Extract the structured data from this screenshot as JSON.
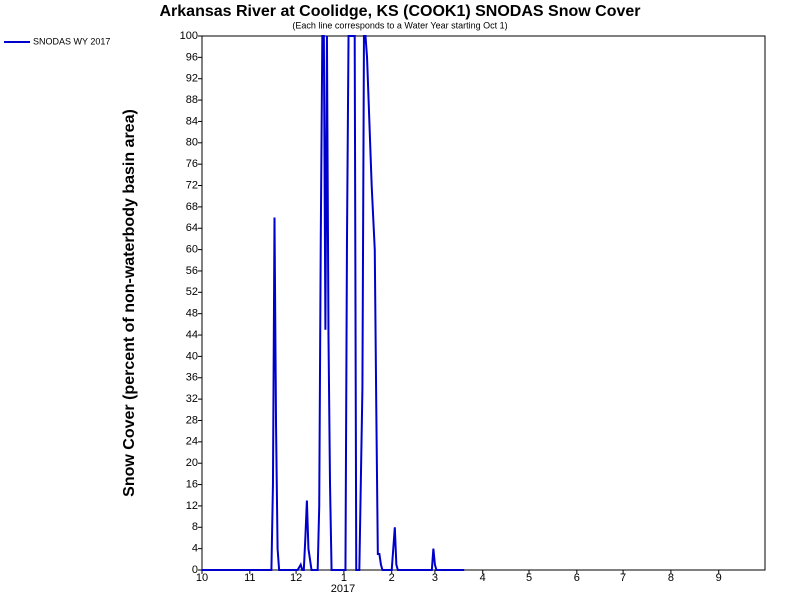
{
  "chart_data": {
    "type": "line",
    "title": "Arkansas River at Coolidge, KS (COOK1) SNODAS Snow Cover",
    "subtitle": "(Each line corresponds to a Water Year starting Oct 1)",
    "y_label": "Snow Cover (percent of non-waterbody basin area)",
    "x_year_label": "2017",
    "legend": "top-left",
    "xlim": [
      0,
      365
    ],
    "xticks": [
      {
        "value": 0,
        "label": "10"
      },
      {
        "value": 31,
        "label": "11"
      },
      {
        "value": 61,
        "label": "12"
      },
      {
        "value": 92,
        "label": "1"
      },
      {
        "value": 123,
        "label": "2"
      },
      {
        "value": 151,
        "label": "3"
      },
      {
        "value": 182,
        "label": "4"
      },
      {
        "value": 212,
        "label": "5"
      },
      {
        "value": 243,
        "label": "6"
      },
      {
        "value": 273,
        "label": "7"
      },
      {
        "value": 304,
        "label": "8"
      },
      {
        "value": 335,
        "label": "9"
      }
    ],
    "ylim": [
      0,
      100
    ],
    "yticks": [
      0,
      4,
      8,
      12,
      16,
      20,
      24,
      28,
      32,
      36,
      40,
      44,
      48,
      52,
      56,
      60,
      64,
      68,
      72,
      76,
      80,
      84,
      88,
      92,
      96,
      100
    ],
    "x": [
      0,
      45,
      46,
      47,
      48,
      49,
      50,
      62,
      64,
      65,
      66,
      67,
      68,
      69,
      70,
      71,
      75,
      76,
      77,
      78,
      79,
      80,
      81,
      82,
      83,
      84,
      93,
      94,
      95,
      96,
      97,
      99,
      100,
      102,
      104,
      105,
      106,
      107,
      108,
      109,
      110,
      111,
      112,
      113,
      114,
      115,
      116,
      117,
      123,
      124,
      125,
      126,
      127,
      149,
      150,
      151,
      152,
      170
    ],
    "series": [
      {
        "name": "SNODAS WY 2017",
        "color": "#0000cc",
        "values": [
          0,
          0,
          16,
          66,
          27,
          4,
          0,
          0,
          1,
          0,
          0,
          6,
          13,
          4,
          2,
          0,
          0,
          12,
          62,
          100,
          100,
          45,
          100,
          44,
          16,
          0,
          0,
          62,
          100,
          100,
          100,
          100,
          0,
          0,
          34,
          100,
          100,
          96,
          88,
          80,
          72,
          66,
          60,
          30,
          3,
          3,
          1,
          0,
          0,
          4,
          8,
          1,
          0,
          0,
          4,
          1,
          0,
          0
        ]
      }
    ]
  }
}
